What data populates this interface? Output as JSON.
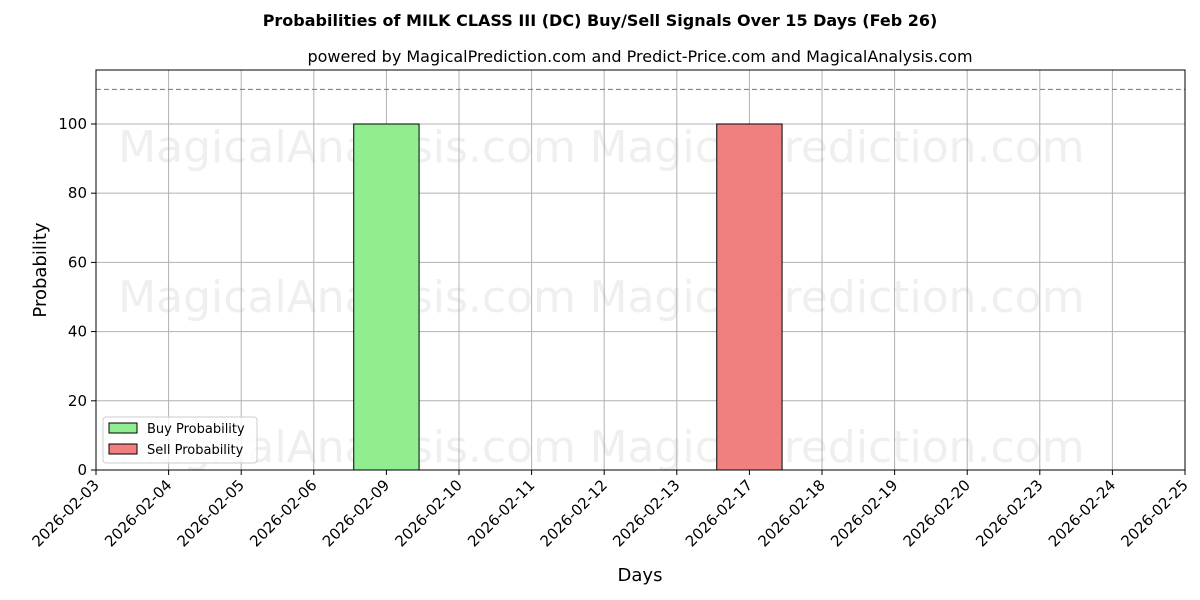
{
  "chart_data": {
    "type": "bar",
    "title": "Probabilities of MILK CLASS III (DC) Buy/Sell Signals Over 15 Days (Feb 26)",
    "subtitle": "powered by MagicalPrediction.com and Predict-Price.com and MagicalAnalysis.com",
    "xlabel": "Days",
    "ylabel": "Probability",
    "ylim": [
      0,
      115.6
    ],
    "yticks": [
      0,
      20,
      40,
      60,
      80,
      100
    ],
    "threshold_line": 110,
    "categories": [
      "2026-02-03",
      "2026-02-04",
      "2026-02-05",
      "2026-02-06",
      "2026-02-09",
      "2026-02-10",
      "2026-02-11",
      "2026-02-12",
      "2026-02-13",
      "2026-02-17",
      "2026-02-18",
      "2026-02-19",
      "2026-02-20",
      "2026-02-23",
      "2026-02-24",
      "2026-02-25"
    ],
    "series": [
      {
        "name": "Buy Probability",
        "color": "#90ee90",
        "values": [
          0,
          0,
          0,
          0,
          100,
          0,
          0,
          0,
          0,
          0,
          0,
          0,
          0,
          0,
          0,
          0
        ]
      },
      {
        "name": "Sell Probability",
        "color": "#f08080",
        "values": [
          0,
          0,
          0,
          0,
          0,
          0,
          0,
          0,
          0,
          100,
          0,
          0,
          0,
          0,
          0,
          0
        ]
      }
    ],
    "legend_position": "lower-left",
    "grid": true,
    "watermarks": [
      "MagicalAnalysis.com",
      "MagicalPrediction.com"
    ]
  }
}
